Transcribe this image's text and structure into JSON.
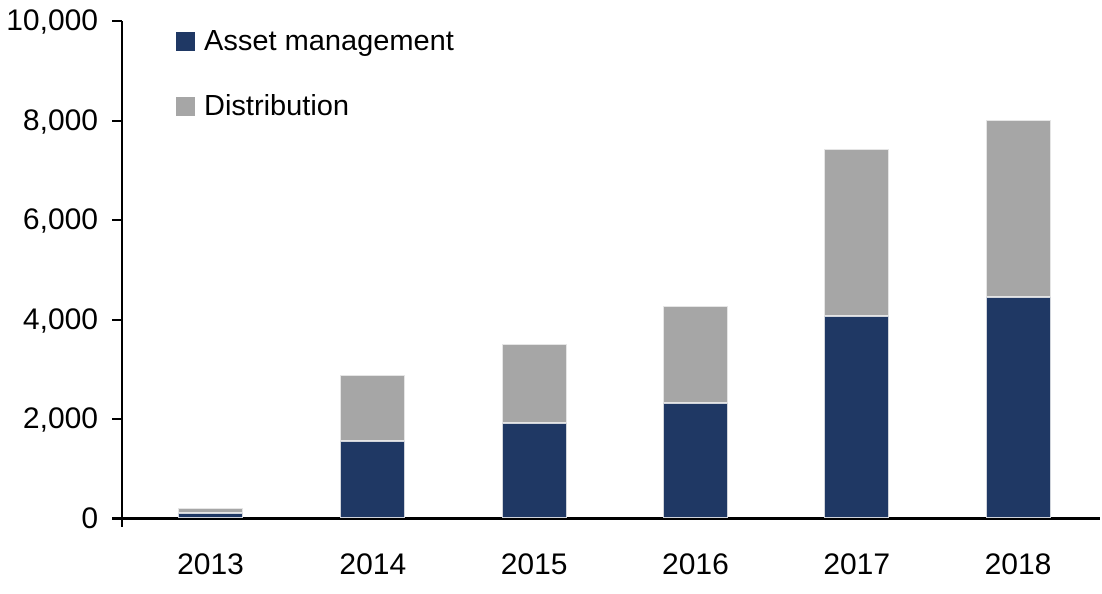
{
  "chart_data": {
    "type": "bar",
    "stacked": true,
    "title": "",
    "xlabel": "",
    "ylabel": "",
    "categories": [
      "2013",
      "2014",
      "2015",
      "2016",
      "2017",
      "2018"
    ],
    "series": [
      {
        "name": "Asset management",
        "color": "#1F3864",
        "values": [
          110,
          1550,
          1900,
          2300,
          4050,
          4430
        ]
      },
      {
        "name": "Distribution",
        "color": "#A6A6A6",
        "values": [
          85,
          1320,
          1600,
          1950,
          3350,
          3570
        ]
      }
    ],
    "totals": [
      195,
      2870,
      3500,
      4250,
      7400,
      8000
    ],
    "ylim": [
      0,
      10000
    ],
    "yticks": [
      0,
      2000,
      4000,
      6000,
      8000,
      10000
    ],
    "ytick_labels": [
      "0",
      "2,000",
      "4,000",
      "6,000",
      "8,000",
      "10,000"
    ],
    "grid": false,
    "legend_position": "top-left"
  },
  "legend": {
    "items": [
      {
        "label": "Asset management",
        "color": "#1F3864"
      },
      {
        "label": "Distribution",
        "color": "#A6A6A6"
      }
    ]
  },
  "colors": {
    "asset_management": "#1F3864",
    "distribution": "#A6A6A6",
    "axis": "#000000",
    "background": "#FFFFFF"
  }
}
